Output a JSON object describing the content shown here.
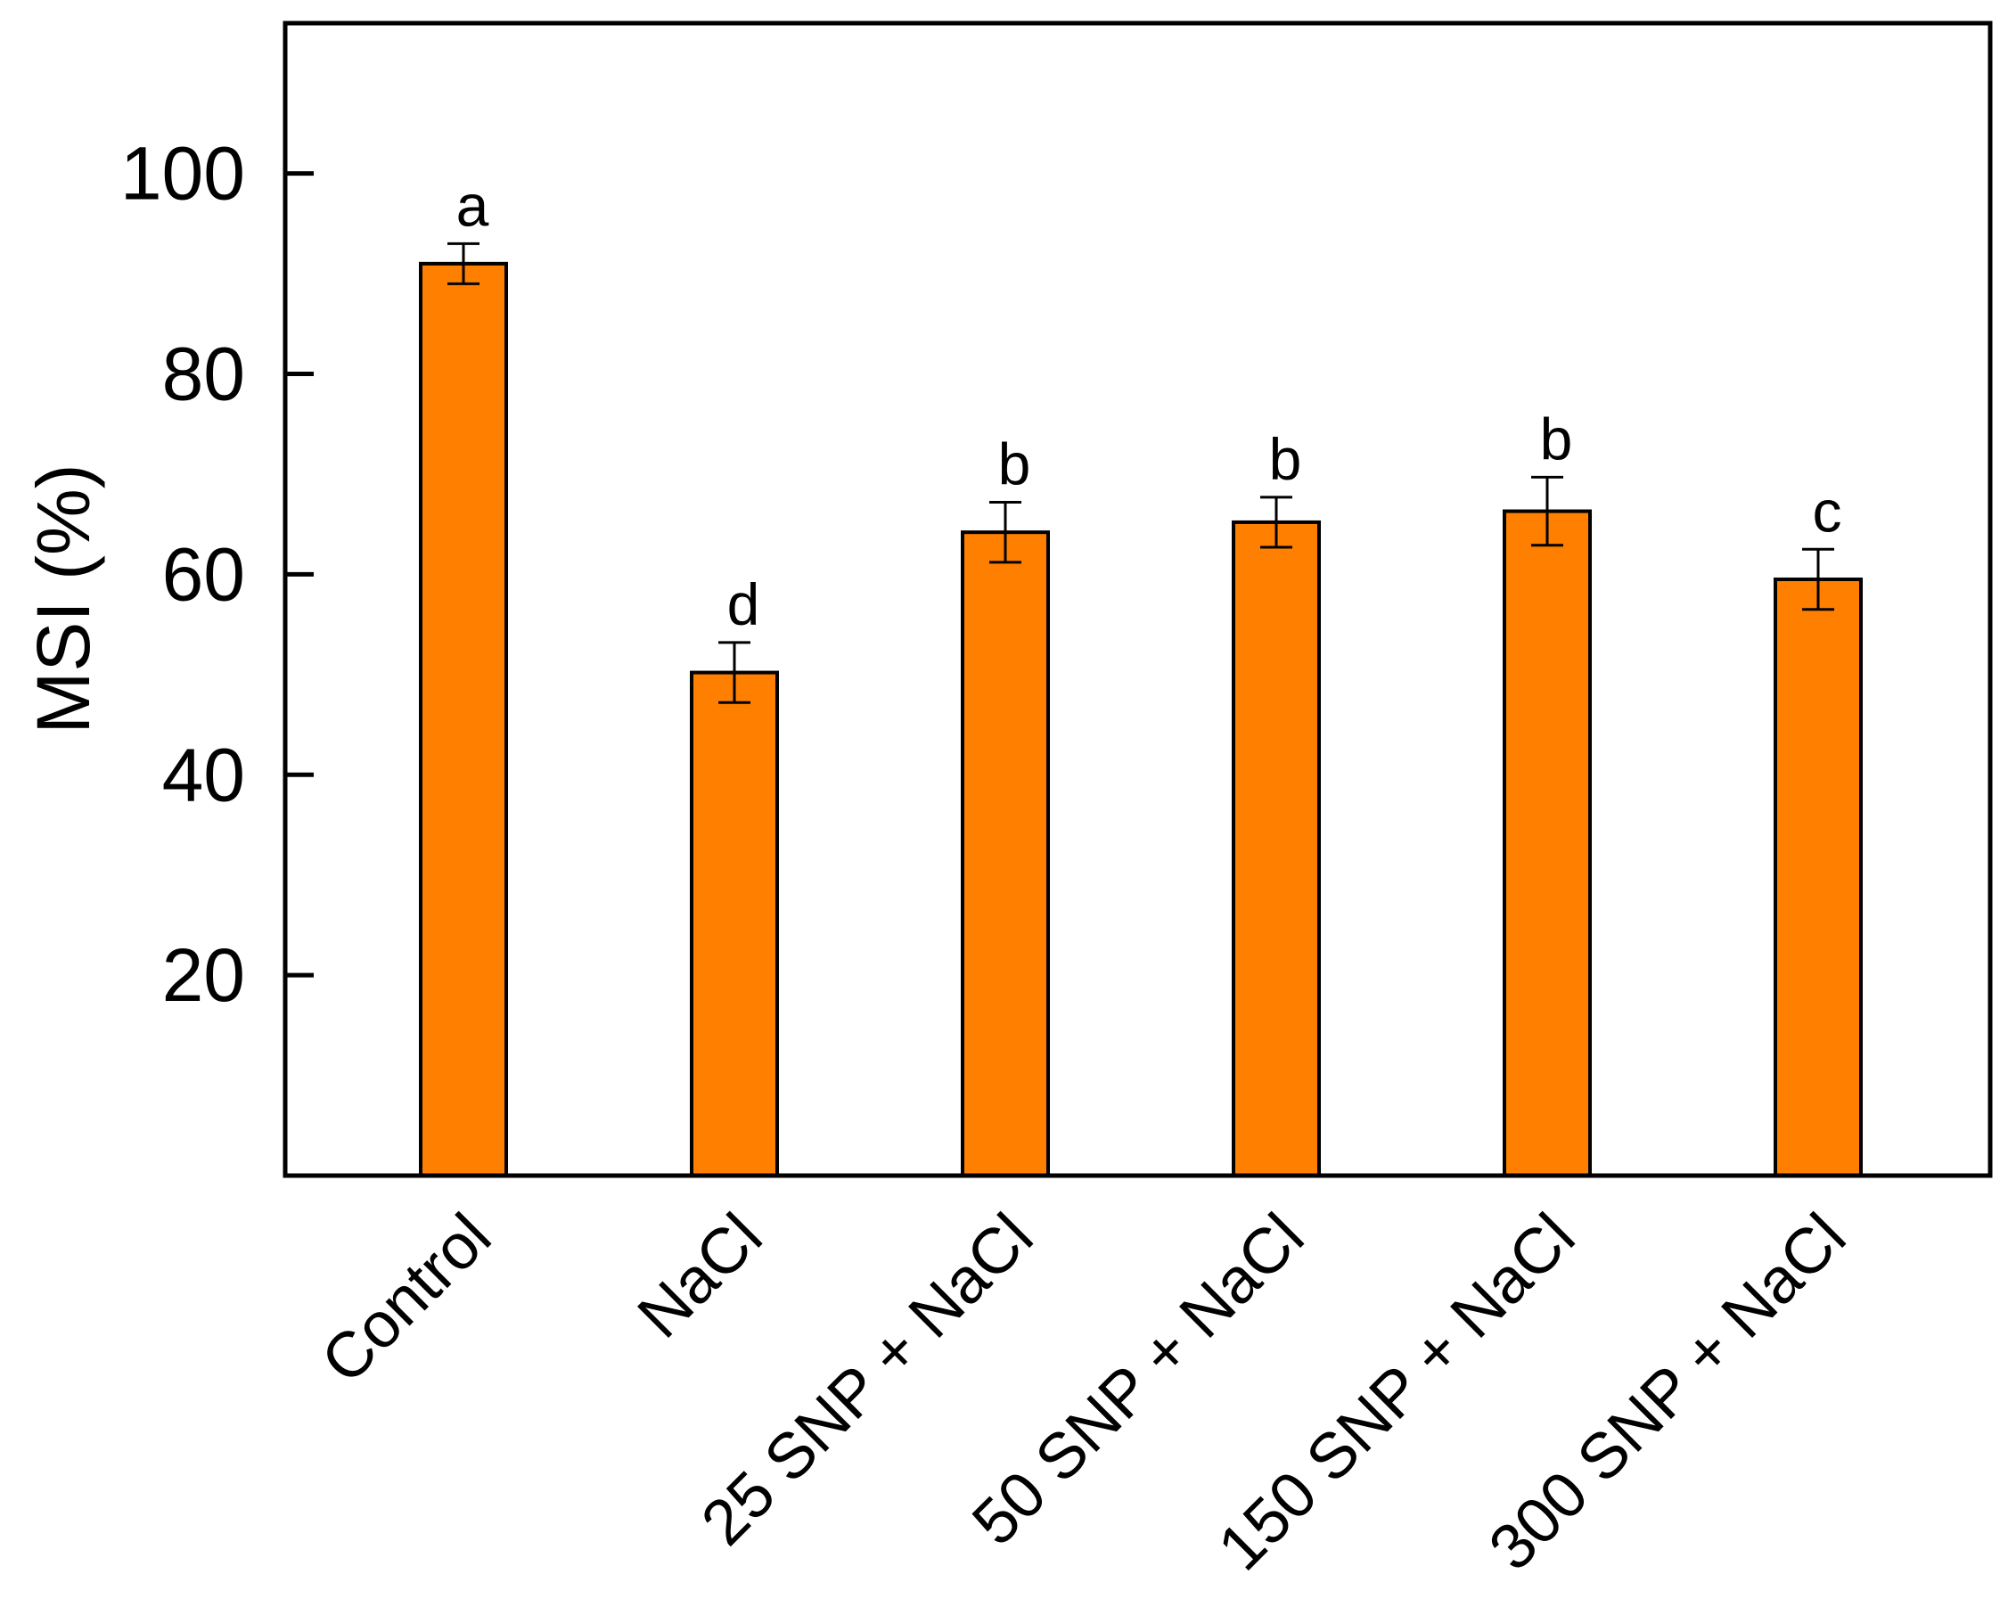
{
  "chart_data": {
    "type": "bar",
    "title": "",
    "xlabel": "",
    "ylabel": "MSI (%)",
    "ylim": [
      0,
      115
    ],
    "yticks": [
      20,
      40,
      60,
      80,
      100
    ],
    "grid": false,
    "legend": "none",
    "bar_color": "#FF8000",
    "categories": [
      "Control",
      "NaCl",
      "25 SNP + NaCl",
      "50 SNP + NaCl",
      "150 SNP + NaCl",
      "300 SNP + NaCl"
    ],
    "values": [
      91.0,
      50.2,
      64.2,
      65.2,
      66.3,
      59.5
    ],
    "errors": [
      2.0,
      3.0,
      3.0,
      2.5,
      3.4,
      3.0
    ],
    "significance": [
      "a",
      "d",
      "b",
      "b",
      "b",
      "c"
    ]
  }
}
